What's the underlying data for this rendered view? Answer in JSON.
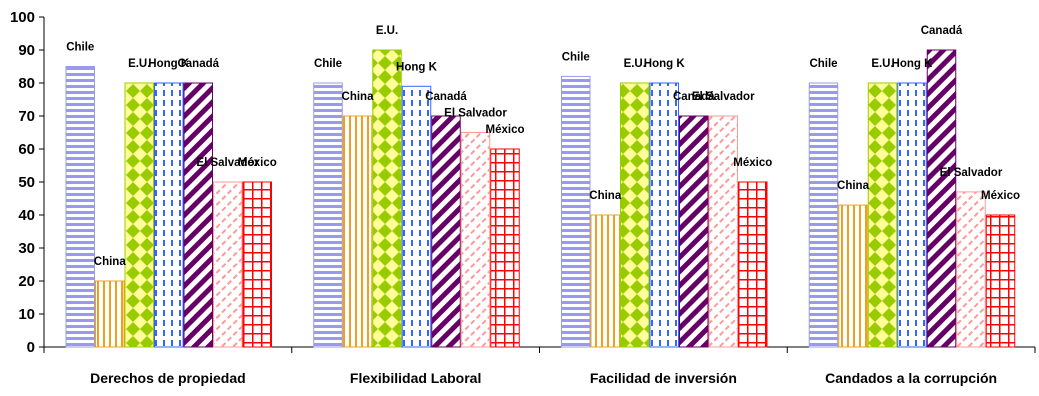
{
  "chart_data": {
    "type": "bar",
    "title": "",
    "xlabel": "",
    "ylabel": "",
    "ylim": [
      0,
      100
    ],
    "yticks": [
      0,
      10,
      20,
      30,
      40,
      50,
      60,
      70,
      80,
      90,
      100
    ],
    "grid": false,
    "legend": "none",
    "categories": [
      "Derechos de propiedad",
      "Flexibilidad Laboral",
      "Facilidad de inversión",
      "Candados a la corrupción"
    ],
    "series": [
      {
        "name": "Chile",
        "values": [
          85,
          80,
          82,
          80
        ],
        "color": "#9999ee",
        "pattern": "horizontal-stripes"
      },
      {
        "name": "China",
        "values": [
          20,
          70,
          40,
          43
        ],
        "color": "#f0a020",
        "pattern": "vertical-stripes"
      },
      {
        "name": "E.U.",
        "values": [
          80,
          90,
          80,
          80
        ],
        "color": "#99cc00",
        "pattern": "diamond-checker"
      },
      {
        "name": "Hong K",
        "values": [
          80,
          79,
          80,
          80
        ],
        "color": "#3366ff",
        "pattern": "vertical-dashes"
      },
      {
        "name": "Canadá",
        "values": [
          80,
          70,
          70,
          90
        ],
        "color": "#660066",
        "pattern": "diagonal-stripes"
      },
      {
        "name": "El Salvador",
        "values": [
          50,
          65,
          70,
          47
        ],
        "color": "#ff9999",
        "pattern": "diagonal-dashes"
      },
      {
        "name": "México",
        "values": [
          50,
          60,
          50,
          40
        ],
        "color": "#ff0000",
        "pattern": "grid"
      }
    ]
  }
}
